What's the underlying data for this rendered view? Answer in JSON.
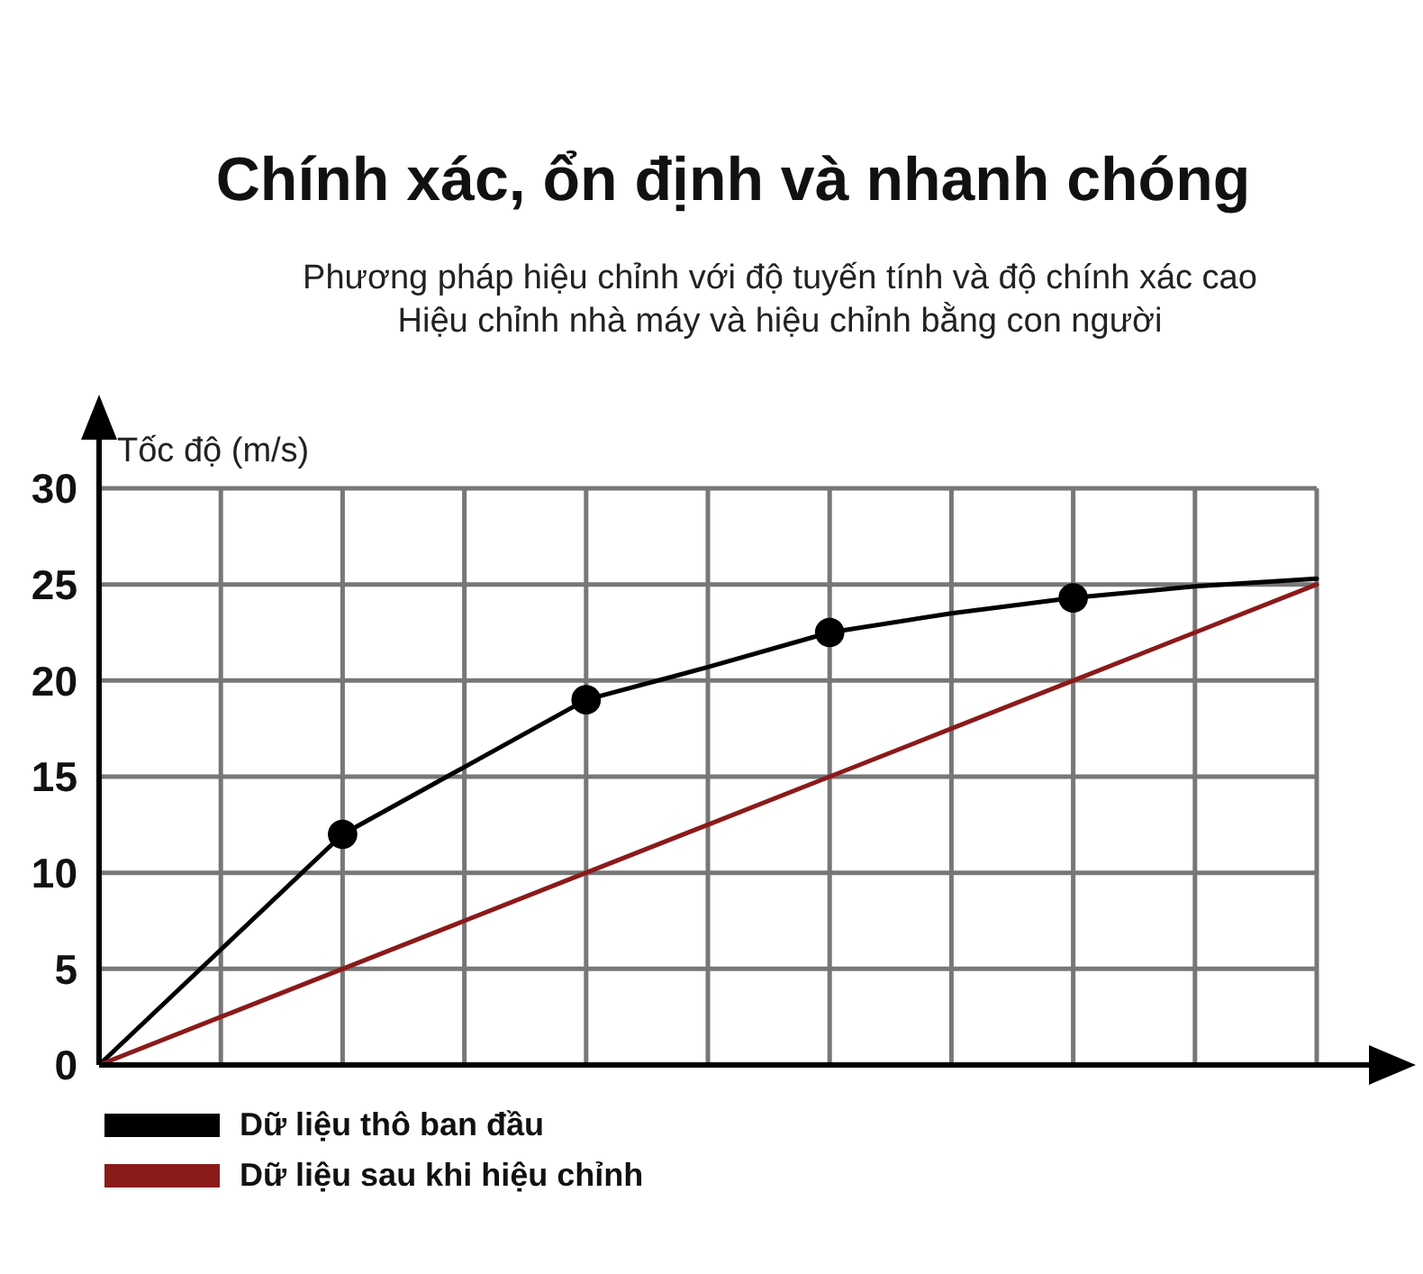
{
  "chart_data": {
    "type": "line",
    "title": "Chính xác, ổn định và nhanh chóng",
    "subtitle": "Phương pháp hiệu chỉnh với độ tuyến tính và độ chính xác cao\nHiệu chỉnh nhà máy và hiệu chỉnh bằng con người",
    "ylabel": "Tốc độ (m/s)",
    "categories": [
      null,
      null,
      null,
      null,
      null,
      null,
      null,
      null,
      null,
      null,
      null
    ],
    "ylim": [
      0,
      30
    ],
    "yticks": [
      0,
      5,
      10,
      15,
      20,
      25,
      30
    ],
    "tick_labels": "y",
    "grid": true,
    "legend": "bottom left",
    "series": [
      {
        "name": "Dữ liệu thô ban đầu",
        "color": "#000000",
        "values": [
          0,
          6,
          12,
          15.5,
          19,
          20.7,
          22.5,
          23.5,
          24.3,
          24.9,
          25.3
        ]
      },
      {
        "type": "scatter",
        "color": "#000000",
        "values": [
          null,
          null,
          12,
          null,
          19,
          null,
          22.5,
          null,
          24.3,
          null,
          null
        ]
      },
      {
        "name": "Dữ liệu sau khi hiệu chỉnh",
        "color": "#8b1a1a",
        "values": [
          0,
          2.5,
          5,
          7.5,
          10,
          12.5,
          15,
          17.5,
          20,
          22.5,
          25
        ]
      }
    ]
  }
}
